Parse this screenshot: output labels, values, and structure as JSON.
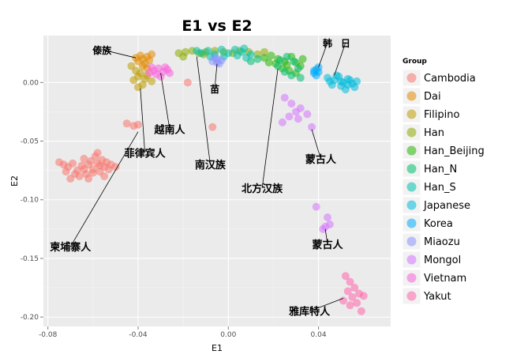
{
  "chart_data": {
    "type": "scatter",
    "title": "E1 vs E2",
    "xlabel": "E1",
    "ylabel": "E2",
    "xlim": [
      -0.082,
      0.072
    ],
    "ylim": [
      -0.208,
      0.04
    ],
    "x_ticks": [
      -0.08,
      -0.04,
      0.0,
      0.04
    ],
    "x_tick_labels": [
      "-0.08",
      "-0.04",
      "0.00",
      "0.04"
    ],
    "y_ticks": [
      0.0,
      -0.05,
      -0.1,
      -0.15,
      -0.2
    ],
    "y_tick_labels": [
      "0.00",
      "-0.05",
      "-0.10",
      "-0.15",
      "-0.20"
    ],
    "grid": true,
    "legend": {
      "title": "Group",
      "position": "right",
      "entries": [
        "Cambodia",
        "Dai",
        "Filipino",
        "Han",
        "Han_Beijing",
        "Han_N",
        "Han_S",
        "Japanese",
        "Korea",
        "Miaozu",
        "Mongol",
        "Vietnam",
        "Yakut"
      ]
    },
    "series": [
      {
        "name": "Cambodia",
        "color": "#F8766D",
        "points": [
          [
            -0.075,
            -0.068
          ],
          [
            -0.073,
            -0.07
          ],
          [
            -0.071,
            -0.072
          ],
          [
            -0.069,
            -0.069
          ],
          [
            -0.067,
            -0.075
          ],
          [
            -0.065,
            -0.071
          ],
          [
            -0.064,
            -0.065
          ],
          [
            -0.063,
            -0.078
          ],
          [
            -0.062,
            -0.07
          ],
          [
            -0.061,
            -0.067
          ],
          [
            -0.06,
            -0.074
          ],
          [
            -0.059,
            -0.063
          ],
          [
            -0.058,
            -0.069
          ],
          [
            -0.057,
            -0.076
          ],
          [
            -0.056,
            -0.066
          ],
          [
            -0.055,
            -0.072
          ],
          [
            -0.054,
            -0.068
          ],
          [
            -0.053,
            -0.074
          ],
          [
            -0.052,
            -0.07
          ],
          [
            -0.05,
            -0.072
          ],
          [
            -0.066,
            -0.08
          ],
          [
            -0.068,
            -0.078
          ],
          [
            -0.07,
            -0.082
          ],
          [
            -0.062,
            -0.082
          ],
          [
            -0.058,
            -0.06
          ],
          [
            -0.055,
            -0.08
          ],
          [
            -0.072,
            -0.076
          ],
          [
            -0.06,
            -0.077
          ],
          [
            -0.057,
            -0.071
          ],
          [
            -0.064,
            -0.074
          ],
          [
            -0.045,
            -0.035
          ],
          [
            -0.042,
            -0.037
          ],
          [
            -0.04,
            -0.036
          ],
          [
            -0.018,
            0.0
          ],
          [
            -0.007,
            -0.038
          ]
        ]
      },
      {
        "name": "Dai",
        "color": "#E18A00",
        "points": [
          [
            -0.04,
            0.018
          ],
          [
            -0.038,
            0.02
          ],
          [
            -0.036,
            0.022
          ],
          [
            -0.039,
            0.023
          ],
          [
            -0.037,
            0.016
          ],
          [
            -0.035,
            0.019
          ],
          [
            -0.041,
            0.021
          ],
          [
            -0.034,
            0.024
          ],
          [
            -0.038,
            0.014
          ],
          [
            -0.036,
            0.012
          ]
        ]
      },
      {
        "name": "Filipino",
        "color": "#BE9C00",
        "points": [
          [
            -0.042,
            0.002
          ],
          [
            -0.04,
            0.005
          ],
          [
            -0.038,
            -0.002
          ],
          [
            -0.041,
            0.01
          ],
          [
            -0.039,
            0.008
          ],
          [
            -0.037,
            0.003
          ],
          [
            -0.043,
            0.014
          ],
          [
            -0.036,
            0.006
          ],
          [
            -0.034,
            0.001
          ],
          [
            -0.04,
            -0.004
          ]
        ]
      },
      {
        "name": "Han",
        "color": "#8CAB00",
        "points": [
          [
            -0.022,
            0.025
          ],
          [
            -0.019,
            0.026
          ],
          [
            -0.016,
            0.027
          ],
          [
            -0.013,
            0.025
          ],
          [
            -0.01,
            0.026
          ],
          [
            -0.006,
            0.027
          ],
          [
            -0.002,
            0.026
          ],
          [
            0.002,
            0.025
          ],
          [
            0.005,
            0.027
          ],
          [
            0.009,
            0.026
          ],
          [
            0.013,
            0.024
          ],
          [
            0.016,
            0.026
          ],
          [
            -0.02,
            0.022
          ],
          [
            -0.011,
            0.024
          ]
        ]
      },
      {
        "name": "Han_Beijing",
        "color": "#24B700",
        "points": [
          [
            0.016,
            0.021
          ],
          [
            0.019,
            0.023
          ],
          [
            0.022,
            0.02
          ],
          [
            0.025,
            0.018
          ],
          [
            0.028,
            0.022
          ],
          [
            0.03,
            0.017
          ],
          [
            0.032,
            0.014
          ],
          [
            0.021,
            0.016
          ],
          [
            0.024,
            0.012
          ],
          [
            0.027,
            0.01
          ],
          [
            0.03,
            0.008
          ],
          [
            0.033,
            0.02
          ],
          [
            0.018,
            0.017
          ],
          [
            0.026,
            0.015
          ]
        ]
      },
      {
        "name": "Han_N",
        "color": "#00BE70",
        "points": [
          [
            0.023,
            0.019
          ],
          [
            0.026,
            0.022
          ],
          [
            0.029,
            0.018
          ],
          [
            0.031,
            0.012
          ],
          [
            0.028,
            0.006
          ],
          [
            0.025,
            0.009
          ],
          [
            0.022,
            0.014
          ],
          [
            0.032,
            0.004
          ],
          [
            0.01,
            0.018
          ],
          [
            0.013,
            0.02
          ]
        ]
      },
      {
        "name": "Han_S",
        "color": "#00C1AB",
        "points": [
          [
            -0.012,
            0.025
          ],
          [
            -0.009,
            0.027
          ],
          [
            -0.006,
            0.024
          ],
          [
            -0.003,
            0.028
          ],
          [
            0.0,
            0.025
          ],
          [
            0.003,
            0.028
          ],
          [
            0.006,
            0.026
          ],
          [
            0.004,
            0.023
          ],
          [
            -0.002,
            0.022
          ],
          [
            0.007,
            0.029
          ],
          [
            0.01,
            0.024
          ],
          [
            0.008,
            0.021
          ],
          [
            -0.014,
            0.027
          ],
          [
            -0.008,
            0.022
          ]
        ]
      },
      {
        "name": "Japanese",
        "color": "#00BBDA",
        "points": [
          [
            0.044,
            0.004
          ],
          [
            0.047,
            0.002
          ],
          [
            0.049,
            0.005
          ],
          [
            0.051,
            0.0
          ],
          [
            0.053,
            0.003
          ],
          [
            0.055,
            -0.001
          ],
          [
            0.046,
            -0.002
          ],
          [
            0.05,
            -0.003
          ],
          [
            0.052,
            -0.006
          ],
          [
            0.054,
            0.002
          ],
          [
            0.056,
            -0.004
          ],
          [
            0.048,
            0.006
          ],
          [
            0.05,
            0.001
          ],
          [
            0.053,
            -0.002
          ],
          [
            0.045,
            0.001
          ],
          [
            0.057,
            0.001
          ]
        ]
      },
      {
        "name": "Korea",
        "color": "#00ACFC",
        "points": [
          [
            0.038,
            0.008
          ],
          [
            0.039,
            0.011
          ],
          [
            0.04,
            0.009
          ],
          [
            0.039,
            0.006
          ],
          [
            0.04,
            0.013
          ],
          [
            0.038,
            0.01
          ]
        ]
      },
      {
        "name": "Miaozu",
        "color": "#8B93FF",
        "points": [
          [
            -0.007,
            0.018
          ],
          [
            -0.005,
            0.02
          ],
          [
            -0.004,
            0.016
          ],
          [
            -0.006,
            0.021
          ],
          [
            -0.003,
            0.019
          ],
          [
            -0.005,
            0.017
          ]
        ]
      },
      {
        "name": "Mongol",
        "color": "#D575FE",
        "points": [
          [
            0.025,
            -0.013
          ],
          [
            0.028,
            -0.018
          ],
          [
            0.03,
            -0.025
          ],
          [
            0.027,
            -0.029
          ],
          [
            0.032,
            -0.022
          ],
          [
            0.035,
            -0.027
          ],
          [
            0.024,
            -0.034
          ],
          [
            0.031,
            -0.031
          ],
          [
            0.037,
            -0.038
          ],
          [
            0.039,
            -0.106
          ],
          [
            0.044,
            -0.115
          ],
          [
            0.043,
            -0.123
          ],
          [
            0.045,
            -0.121
          ],
          [
            0.042,
            -0.125
          ]
        ]
      },
      {
        "name": "Vietnam",
        "color": "#F962DD",
        "points": [
          [
            -0.035,
            0.008
          ],
          [
            -0.033,
            0.01
          ],
          [
            -0.031,
            0.012
          ],
          [
            -0.029,
            0.009
          ],
          [
            -0.027,
            0.011
          ],
          [
            -0.032,
            0.007
          ],
          [
            -0.03,
            0.005
          ],
          [
            -0.028,
            0.013
          ],
          [
            -0.034,
            0.013
          ],
          [
            -0.026,
            0.008
          ]
        ]
      },
      {
        "name": "Yakut",
        "color": "#FF65AC",
        "points": [
          [
            0.052,
            -0.165
          ],
          [
            0.054,
            -0.17
          ],
          [
            0.056,
            -0.175
          ],
          [
            0.058,
            -0.18
          ],
          [
            0.053,
            -0.178
          ],
          [
            0.055,
            -0.183
          ],
          [
            0.057,
            -0.188
          ],
          [
            0.06,
            -0.182
          ],
          [
            0.051,
            -0.186
          ],
          [
            0.059,
            -0.195
          ],
          [
            0.054,
            -0.19
          ]
        ]
      }
    ],
    "annotations": [
      {
        "text": "傣族",
        "at": [
          -0.056,
          0.028
        ],
        "line_to": [
          -0.041,
          0.021
        ]
      },
      {
        "text": "越南人",
        "at": [
          -0.026,
          -0.04
        ],
        "line_to": [
          -0.03,
          0.008
        ]
      },
      {
        "text": "菲律宾人",
        "at": [
          -0.037,
          -0.06
        ],
        "line_to": [
          -0.039,
          -0.005
        ]
      },
      {
        "text": "苗",
        "at": [
          -0.006,
          -0.005
        ],
        "line_to": [
          -0.005,
          0.016
        ]
      },
      {
        "text": "南汉族",
        "at": [
          -0.008,
          -0.07
        ],
        "line_to": [
          -0.014,
          0.022
        ]
      },
      {
        "text": "北方汉族",
        "at": [
          0.015,
          -0.09
        ],
        "line_to": [
          0.022,
          0.012
        ]
      },
      {
        "text": "韩",
        "at": [
          0.044,
          0.034
        ],
        "line_to": [
          0.04,
          0.013
        ]
      },
      {
        "text": "日",
        "at": [
          0.052,
          0.034
        ],
        "line_to": [
          0.047,
          0.006
        ]
      },
      {
        "text": "蒙古人",
        "at": [
          0.041,
          -0.065
        ],
        "line_to": [
          0.037,
          -0.04
        ]
      },
      {
        "text": "蒙古人",
        "at": [
          0.044,
          -0.138
        ],
        "line_to": [
          0.043,
          -0.125
        ]
      },
      {
        "text": "雅库特人",
        "at": [
          0.036,
          -0.195
        ],
        "line_to": [
          0.051,
          -0.184
        ]
      },
      {
        "text": "柬埔寨人",
        "at": [
          -0.07,
          -0.14
        ],
        "line_to": [
          -0.04,
          -0.042
        ]
      }
    ]
  }
}
